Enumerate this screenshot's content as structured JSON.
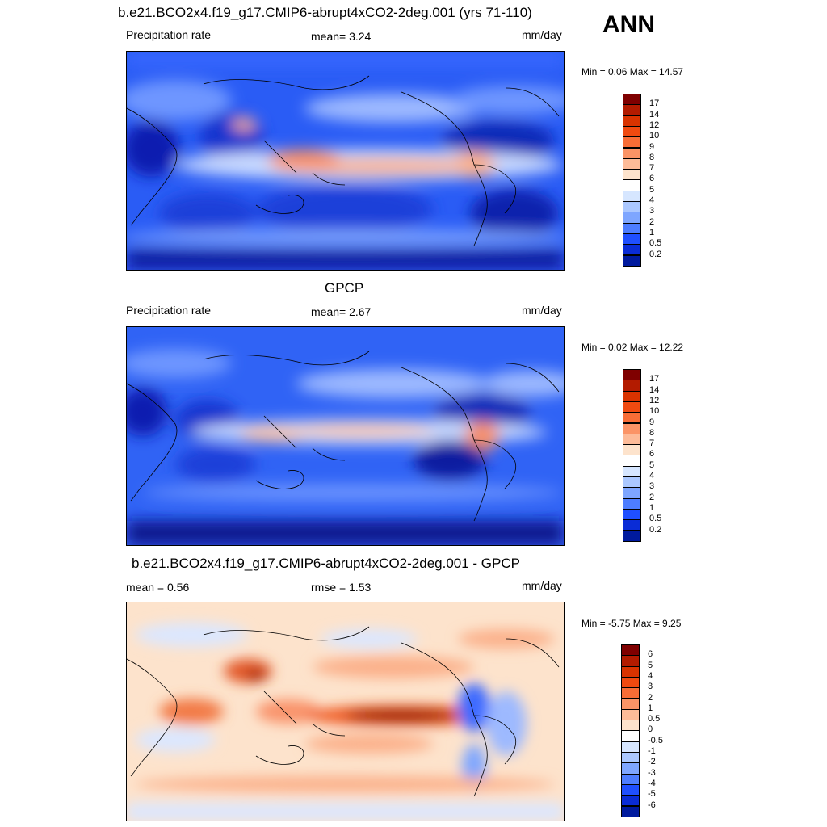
{
  "season": "ANN",
  "panels": [
    {
      "id": "model",
      "title": "b.e21.BCO2x4.f19_g17.CMIP6-abrupt4xCO2-2deg.001 (yrs 71-110)",
      "left_label": "Precipitation rate",
      "center_label": "mean=   3.24",
      "units": "mm/day",
      "minmax": "Min =   0.06 Max =  14.57",
      "colorbar": {
        "labels": [
          "17",
          "14",
          "12",
          "10",
          "9",
          "8",
          "7",
          "6",
          "5",
          "4",
          "3",
          "2",
          "1",
          "0.5",
          "0.2"
        ],
        "colors": [
          "#7f0000",
          "#b31b00",
          "#d93300",
          "#f04a10",
          "#f86d36",
          "#fb9466",
          "#fdbb98",
          "#fde3cc",
          "#ffffff",
          "#d6e6ff",
          "#abc8ff",
          "#7ea6ff",
          "#4d7dff",
          "#1f4fff",
          "#0a2cd6",
          "#001a9e"
        ]
      }
    },
    {
      "id": "obs",
      "title": "GPCP",
      "left_label": "Precipitation rate",
      "center_label": "mean=   2.67",
      "units": "mm/day",
      "minmax": "Min =   0.02 Max =  12.22",
      "colorbar": {
        "labels": [
          "17",
          "14",
          "12",
          "10",
          "9",
          "8",
          "7",
          "6",
          "5",
          "4",
          "3",
          "2",
          "1",
          "0.5",
          "0.2"
        ],
        "colors": [
          "#7f0000",
          "#b31b00",
          "#d93300",
          "#f04a10",
          "#f86d36",
          "#fb9466",
          "#fdbb98",
          "#fde3cc",
          "#ffffff",
          "#d6e6ff",
          "#abc8ff",
          "#7ea6ff",
          "#4d7dff",
          "#1f4fff",
          "#0a2cd6",
          "#001a9e"
        ]
      }
    },
    {
      "id": "diff",
      "title": "b.e21.BCO2x4.f19_g17.CMIP6-abrupt4xCO2-2deg.001 - GPCP",
      "left_label": "mean =   0.56",
      "center_label": "rmse =   1.53",
      "units": "mm/day",
      "minmax": "Min =  -5.75 Max =   9.25",
      "colorbar": {
        "labels": [
          "6",
          "5",
          "4",
          "3",
          "2",
          "1",
          "0.5",
          "0",
          "-0.5",
          "-1",
          "-2",
          "-3",
          "-4",
          "-5",
          "-6"
        ],
        "colors": [
          "#7f0000",
          "#b31b00",
          "#d93300",
          "#f04a10",
          "#f86d36",
          "#fb9466",
          "#fdbb98",
          "#fde3cc",
          "#ffffff",
          "#d6e6ff",
          "#abc8ff",
          "#7ea6ff",
          "#4d7dff",
          "#1f4fff",
          "#0a2cd6",
          "#001a9e"
        ]
      }
    }
  ]
}
